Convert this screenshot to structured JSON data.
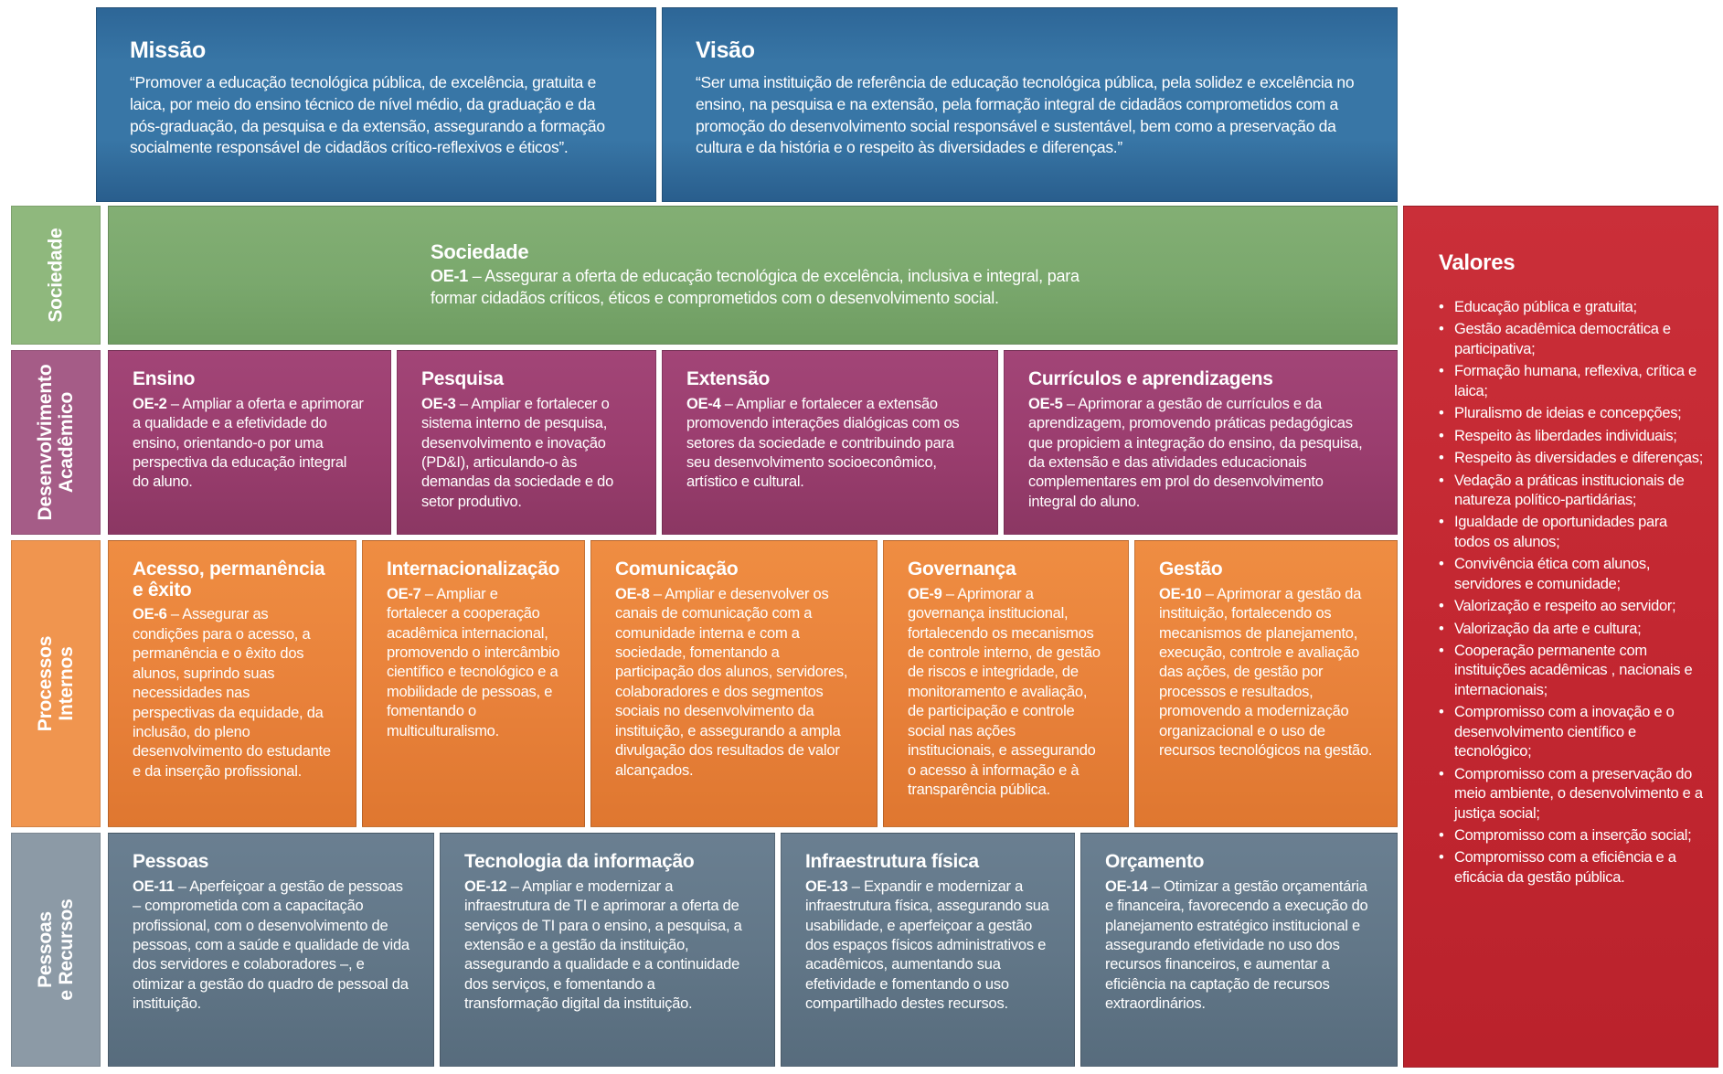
{
  "mission": {
    "title": "Missão",
    "text": "“Promover a educação tecnológica pública, de excelência, gratuita e laica, por meio do ensino técnico de nível médio, da graduação e da pós-graduação, da pesquisa e da extensão, assegurando a formação socialmente responsável de cidadãos crítico-reflexivos e éticos”."
  },
  "vision": {
    "title": "Visão",
    "text": "“Ser uma instituição de referência de educação tecnológica pública, pela solidez e excelência no ensino, na pesquisa e na extensão, pela formação integral de cidadãos comprometidos com a promoção do desenvolvimento social responsável e sustentável, bem como a preservação da cultura e da história e o respeito às diversidades e diferenças.”"
  },
  "perspectives": {
    "sociedade": {
      "label": "Sociedade"
    },
    "desenvolvimento": {
      "label": "Desenvolvimento\nAcadêmico"
    },
    "processos": {
      "label": "Processos\nInternos"
    },
    "pessoas": {
      "label": "Pessoas\ne Recursos"
    }
  },
  "objectives": {
    "oe1": {
      "title": "Sociedade",
      "code": "OE-1",
      "text": "– Assegurar a oferta de educação tecnológica de excelência, inclusiva e integral, para formar cidadãos críticos, éticos e comprometidos com o desenvolvimento social."
    },
    "oe2": {
      "title": "Ensino",
      "code": "OE-2",
      "text": "– Ampliar a oferta e aprimorar a qualidade e a efetividade do ensino, orientando-o por uma perspectiva da educação integral do aluno."
    },
    "oe3": {
      "title": "Pesquisa",
      "code": "OE-3",
      "text": "– Ampliar e fortalecer o sistema interno de pesquisa, desenvolvimento e inovação (PD&I), articulando-o às demandas da sociedade e do setor produtivo."
    },
    "oe4": {
      "title": "Extensão",
      "code": "OE-4",
      "text": "– Ampliar e fortalecer a extensão promovendo interações dialógicas com os setores da sociedade e contribuindo para seu desenvolvimento socioeconômico, artístico e cultural."
    },
    "oe5": {
      "title": "Currículos e aprendizagens",
      "code": "OE-5",
      "text": "– Aprimorar a gestão de currículos e da aprendizagem, promovendo práticas pedagógicas que propiciem a integração do ensino, da pesquisa, da extensão e das atividades educacionais complementares em prol do desenvolvimento integral do aluno."
    },
    "oe6": {
      "title": "Acesso, permanência e êxito",
      "code": "OE-6",
      "text": "– Assegurar as condições para o acesso, a permanência e o êxito dos alunos, suprindo suas necessidades nas perspectivas da equidade, da inclusão, do pleno desenvolvimento do estudante e da inserção profissional."
    },
    "oe7": {
      "title": "Internacionalização",
      "code": "OE-7",
      "text": "– Ampliar e fortalecer a cooperação acadêmica internacional, promovendo o intercâmbio científico e tecnológico e a mobilidade de pessoas, e fomentando o multiculturalismo."
    },
    "oe8": {
      "title": "Comunicação",
      "code": "OE-8",
      "text": "– Ampliar e desenvolver os canais de comunicação com a comunidade interna e com a sociedade, fomentando a participação dos alunos, servidores, colaboradores e dos segmentos sociais no desenvolvimento da instituição, e assegurando a ampla divulgação dos resultados de valor alcançados."
    },
    "oe9": {
      "title": "Governança",
      "code": "OE-9",
      "text": "– Aprimorar a governança institucional, fortalecendo os mecanismos de controle interno, de gestão de riscos e integridade, de monitoramento e avaliação, de participação e controle social nas ações institucionais, e assegurando o acesso à informação e à transparência pública."
    },
    "oe10": {
      "title": "Gestão",
      "code": "OE-10",
      "text": "– Aprimorar a gestão da instituição, fortalecendo os mecanismos de planejamento, execução, controle e avaliação das ações, de gestão por processos e resultados, promovendo a modernização organizacional e o uso de recursos tecnológicos na gestão."
    },
    "oe11": {
      "title": "Pessoas",
      "code": "OE-11",
      "text": "– Aperfeiçoar a gestão de pessoas – comprometida com a capacitação profissional, com o desenvolvimento de pessoas, com a saúde e qualidade de vida dos servidores e colaboradores –, e otimizar a gestão do quadro de pessoal da instituição."
    },
    "oe12": {
      "title": "Tecnologia da informação",
      "code": "OE-12",
      "text": "– Ampliar e modernizar a infraestrutura de TI e aprimorar a oferta de serviços de TI para o ensino, a pesquisa, a extensão e a gestão da instituição, assegurando a qualidade e a continuidade dos serviços, e fomentando a transformação digital da instituição."
    },
    "oe13": {
      "title": "Infraestrutura física",
      "code": "OE-13",
      "text": "– Expandir e modernizar a infraestrutura física, assegurando sua usabilidade, e aperfeiçoar a gestão dos espaços físicos administrativos e acadêmicos, aumentando sua efetividade e fomentando o uso compartilhado destes recursos."
    },
    "oe14": {
      "title": "Orçamento",
      "code": "OE-14",
      "text": "– Otimizar a gestão orçamentária e financeira, favorecendo a execução do planejamento estratégico institucional e assegurando efetividade no uso dos recursos financeiros, e aumentar a eficiência na captação de recursos extraordinários."
    }
  },
  "values": {
    "title": "Valores",
    "items": [
      "Educação pública e gratuita;",
      "Gestão acadêmica democrática e participativa;",
      "Formação humana, reflexiva, crítica e laica;",
      "Pluralismo de ideias e concepções;",
      "Respeito às liberdades individuais;",
      "Respeito às diversidades e diferenças;",
      "Vedação a práticas institucionais de natureza político-partidárias;",
      "Igualdade de oportunidades para todos os alunos;",
      "Convivência ética com alunos, servidores e comunidade;",
      "Valorização e respeito ao servidor;",
      "Valorização da arte e cultura;",
      "Cooperação permanente com instituições acadêmicas , nacionais e internacionais;",
      "Compromisso com a inovação e o desenvolvimento científico e tecnológico;",
      "Compromisso com a preservação do meio ambiente, o desenvolvimento e a justiça social;",
      "Compromisso com a inserção social;",
      "Compromisso com a eficiência e a eficácia da gestão pública."
    ]
  },
  "colors": {
    "blue": "#3876a6",
    "green": "#7aa86d",
    "purple": "#9a3d6e",
    "orange": "#e8813a",
    "gray": "#617687",
    "red": "#c32731"
  }
}
